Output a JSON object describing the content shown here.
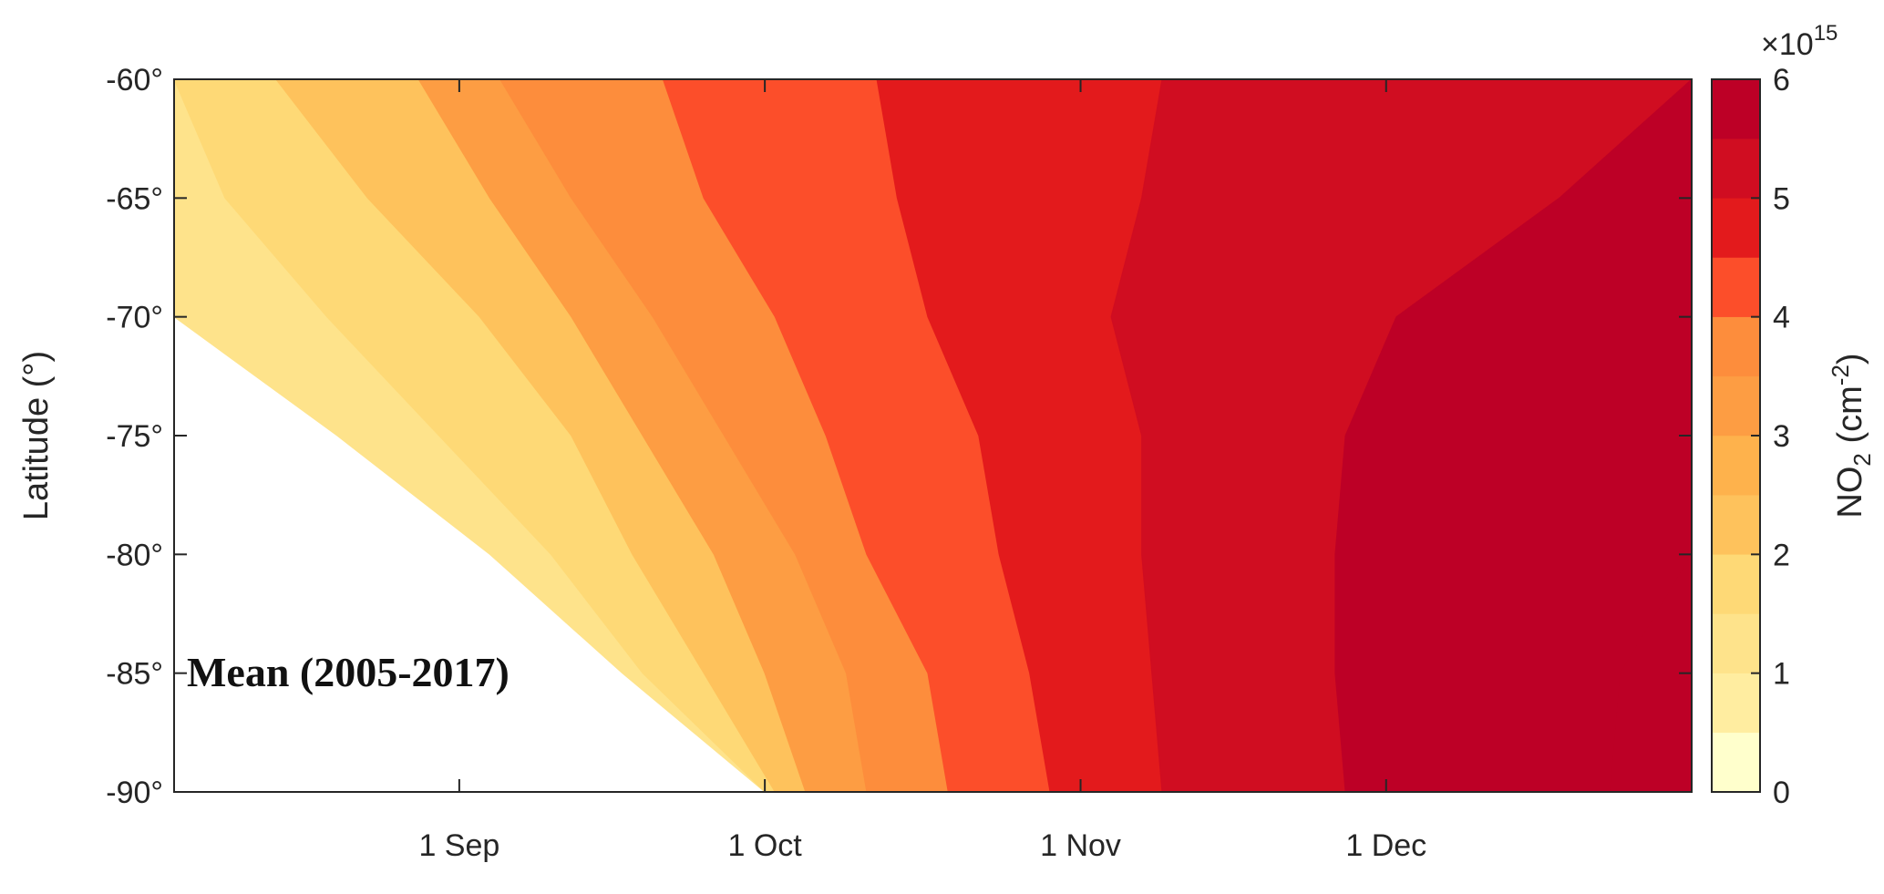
{
  "chart_data": {
    "type": "heatmap",
    "title": "",
    "annotation": "Mean (2005-2017)",
    "xlabel": "",
    "ylabel": "Latitude (°)",
    "x_tick_labels": [
      "1 Sep",
      "1 Oct",
      "1 Nov",
      "1 Dec"
    ],
    "x_tick_days": [
      0,
      30,
      61,
      91
    ],
    "x_range_days": [
      -28,
      121
    ],
    "ylim": [
      -90,
      -60
    ],
    "y_ticks": [
      -60,
      -65,
      -70,
      -75,
      -80,
      -85,
      -90
    ],
    "y_tick_labels": [
      "-60°",
      "-65°",
      "-70°",
      "-75°",
      "-80°",
      "-85°",
      "-90°"
    ],
    "colorbar": {
      "label_main": "NO",
      "label_sub": "2",
      "label_unit": " (cm",
      "label_sup": "-2",
      "label_close": ")",
      "exponent_base": "×10",
      "exponent_power": "15",
      "ticks": [
        0,
        1,
        2,
        3,
        4,
        5,
        6
      ],
      "tick_labels": [
        "0",
        "1",
        "2",
        "3",
        "4",
        "5",
        "6"
      ],
      "levels": [
        0,
        0.5,
        1,
        1.5,
        2,
        2.5,
        3,
        3.5,
        4,
        4.5,
        5,
        5.5,
        6
      ],
      "colors": [
        "#ffffcc",
        "#ffeda0",
        "#fee38b",
        "#fed976",
        "#fec25c",
        "#feb24c",
        "#fd9d43",
        "#fd8d3c",
        "#fc4e2a",
        "#e31a1c",
        "#d00d21",
        "#bd0026",
        "#800026"
      ]
    },
    "contour_boundaries": {
      "latitudes": [
        -60,
        -65,
        -70,
        -75,
        -80,
        -85,
        -90
      ],
      "valid_data_start_day": [
        -28,
        -28,
        -28,
        -12,
        3,
        16,
        30
      ],
      "b1_0": [
        -28,
        -28,
        -28,
        -28,
        -28,
        -28,
        -28
      ],
      "b1_5": [
        -28,
        -23,
        -13,
        -2,
        9,
        18,
        30
      ],
      "b2_0": [
        -18,
        -9,
        2,
        11,
        17,
        24,
        31
      ],
      "b2_5": [
        -4,
        3,
        11,
        18,
        25,
        30,
        34
      ],
      "b3_0": [
        4,
        11,
        19,
        26,
        33,
        38,
        40
      ],
      "b3_5": [
        20,
        24,
        31,
        36,
        40,
        46,
        48
      ],
      "b4_0": [
        41,
        43,
        46,
        51,
        53,
        56,
        58
      ],
      "b4_5": [
        69,
        67,
        64,
        67,
        67,
        68,
        69
      ],
      "b5_0": [
        121,
        108,
        92,
        87,
        86,
        86,
        87
      ],
      "b5_5": [
        121,
        121,
        121,
        121,
        121,
        114,
        113
      ]
    }
  }
}
